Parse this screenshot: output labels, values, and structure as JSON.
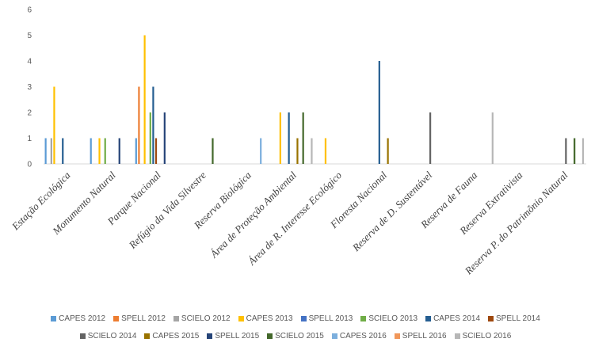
{
  "chart_data": {
    "type": "bar",
    "title": "",
    "xlabel": "",
    "ylabel": "",
    "ylim": [
      0,
      6
    ],
    "yticks": [
      0,
      1,
      2,
      3,
      4,
      5,
      6
    ],
    "grid": false,
    "legend_position": "bottom",
    "categories": [
      "Estação Ecológica",
      "Monumento Natural",
      "Parque Nacional",
      "Refúgio da Vida Silvestre",
      "Reserva Biológica",
      "Área de Proteção Ambiental",
      "Área de R. Interesse Ecológico",
      "Floresta Nacional",
      "Reserva de D. Sustentável",
      "Reserva de Fauna",
      "Reserva Extrativista",
      "Reserva P. do Patrimônio Natural"
    ],
    "series": [
      {
        "name": "CAPES 2012",
        "color": "#5b9bd5",
        "values": [
          1,
          1,
          1,
          0,
          0,
          0,
          0,
          0,
          0,
          0,
          0,
          0
        ]
      },
      {
        "name": "SPELL 2012",
        "color": "#ed7d31",
        "values": [
          0,
          0,
          3,
          0,
          0,
          0,
          0,
          0,
          0,
          0,
          0,
          0
        ]
      },
      {
        "name": "SCIELO 2012",
        "color": "#a5a5a5",
        "values": [
          1,
          0,
          0,
          0,
          0,
          0,
          0,
          0,
          0,
          0,
          0,
          0
        ]
      },
      {
        "name": "CAPES 2013",
        "color": "#ffc000",
        "values": [
          3,
          1,
          5,
          0,
          0,
          2,
          1,
          0,
          0,
          0,
          0,
          0
        ]
      },
      {
        "name": "SPELL 2013",
        "color": "#4472c4",
        "values": [
          0,
          0,
          0,
          0,
          0,
          0,
          0,
          0,
          0,
          0,
          0,
          0
        ]
      },
      {
        "name": "SCIELO 2013",
        "color": "#70ad47",
        "values": [
          0,
          1,
          2,
          0,
          0,
          0,
          0,
          0,
          0,
          0,
          0,
          0
        ]
      },
      {
        "name": "CAPES 2014",
        "color": "#255e91",
        "values": [
          1,
          0,
          3,
          0,
          0,
          2,
          0,
          4,
          0,
          0,
          0,
          0
        ]
      },
      {
        "name": "SPELL 2014",
        "color": "#9e480e",
        "values": [
          0,
          0,
          1,
          0,
          0,
          0,
          0,
          0,
          0,
          0,
          0,
          0
        ]
      },
      {
        "name": "SCIELO 2014",
        "color": "#636363",
        "values": [
          0,
          0,
          0,
          0,
          0,
          0,
          0,
          0,
          2,
          0,
          0,
          1
        ]
      },
      {
        "name": "CAPES 2015",
        "color": "#997300",
        "values": [
          0,
          0,
          0,
          0,
          0,
          1,
          0,
          1,
          0,
          0,
          0,
          0
        ]
      },
      {
        "name": "SPELL 2015",
        "color": "#264478",
        "values": [
          0,
          1,
          2,
          0,
          0,
          0,
          0,
          0,
          0,
          0,
          0,
          0
        ]
      },
      {
        "name": "SCIELO 2015",
        "color": "#43682b",
        "values": [
          0,
          0,
          0,
          1,
          0,
          2,
          0,
          0,
          0,
          0,
          0,
          1
        ]
      },
      {
        "name": "CAPES 2016",
        "color": "#7cafdd",
        "values": [
          0,
          0,
          0,
          0,
          1,
          0,
          0,
          0,
          0,
          0,
          0,
          0
        ]
      },
      {
        "name": "SPELL 2016",
        "color": "#f1975a",
        "values": [
          0,
          0,
          0,
          0,
          0,
          0,
          0,
          0,
          0,
          0,
          0,
          0
        ]
      },
      {
        "name": "SCIELO 2016",
        "color": "#b7b7b7",
        "values": [
          0,
          0,
          0,
          0,
          0,
          1,
          0,
          0,
          0,
          2,
          0,
          1
        ]
      }
    ]
  }
}
